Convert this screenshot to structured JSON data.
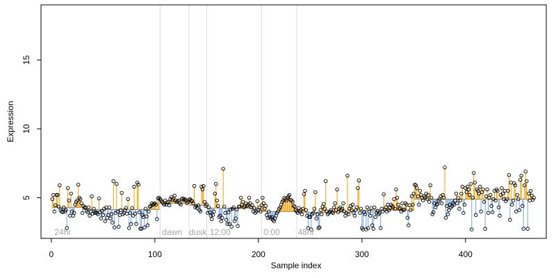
{
  "chart_data": {
    "type": "scatter",
    "xlabel": "Sample index",
    "ylabel": "Expression",
    "xlim": [
      -10,
      478
    ],
    "ylim": [
      2.05,
      19.0
    ],
    "x_ticks": [
      0,
      100,
      200,
      300,
      400
    ],
    "y_ticks": [
      5,
      10,
      15
    ],
    "baseline": [
      {
        "from": 1,
        "to": 30,
        "y": 4.3
      },
      {
        "from": 31,
        "to": 104,
        "y": 4.15
      },
      {
        "from": 105,
        "to": 133,
        "y": 4.6
      },
      {
        "from": 134,
        "to": 149,
        "y": 4.45
      },
      {
        "from": 150,
        "to": 202,
        "y": 4.25
      },
      {
        "from": 203,
        "to": 237,
        "y": 4.0
      },
      {
        "from": 238,
        "to": 290,
        "y": 3.95
      },
      {
        "from": 291,
        "to": 350,
        "y": 4.1
      },
      {
        "from": 351,
        "to": 466,
        "y": 4.9
      }
    ],
    "separators": [
      105,
      133,
      150,
      203,
      237
    ],
    "annotations": [
      {
        "x": 3,
        "text": "24hr"
      },
      {
        "x": 107,
        "text": "dawn"
      },
      {
        "x": 133,
        "text": "dusk"
      },
      {
        "x": 153,
        "text": "12:00"
      },
      {
        "x": 205,
        "text": "0:00"
      },
      {
        "x": 238,
        "text": "48hr"
      }
    ],
    "highlighted_values": [
      {
        "x": 59,
        "y": 6.2
      },
      {
        "x": 82,
        "y": 6.1
      },
      {
        "x": 158,
        "y": 7.1
      },
      {
        "x": 196,
        "y": 7.05
      },
      {
        "x": 285,
        "y": 6.6
      },
      {
        "x": 297,
        "y": 6.25
      },
      {
        "x": 378,
        "y": 7.2
      },
      {
        "x": 403,
        "y": 6.8
      },
      {
        "x": 443,
        "y": 6.65
      },
      {
        "x": 463,
        "y": 6.9
      }
    ],
    "series": [
      {
        "values": [
          4.9,
          5.2,
          4.0,
          4.45,
          5.2,
          5.2,
          4.35,
          5.9,
          4.1,
          4.0,
          3.95,
          4.3,
          4.0,
          4.1,
          2.8,
          5.7,
          4.8,
          3.7,
          5.3,
          4.0,
          3.7,
          3.9,
          4.5,
          4.7,
          4.8,
          5.95,
          5.0,
          4.9,
          4.6,
          3.9,
          4.4,
          4.3,
          4.3,
          4.05,
          3.95,
          4.3,
          3.7,
          4.0,
          5.1,
          3.85,
          4.2,
          3.9,
          3.95,
          3.9,
          3.8,
          4.95,
          3.95,
          3.5,
          4.05,
          3.75,
          4.2,
          3.3,
          4.3,
          3.55,
          3.75,
          4.3,
          3.5,
          3.8,
          3.2,
          6.2,
          2.85,
          3.9,
          6.0,
          4.0,
          2.9,
          3.75,
          4.1,
          5.35,
          3.8,
          3.9,
          4.1,
          4.25,
          3.85,
          4.9,
          2.8,
          3.9,
          3.1,
          4.25,
          3.7,
          5.8,
          3.85,
          3.1,
          6.1,
          5.95,
          3.95,
          2.75,
          2.75,
          3.75,
          3.6,
          2.85,
          4.2,
          3.65,
          3.0,
          4.0,
          4.35,
          4.4,
          4.6,
          4.5,
          4.55,
          4.6,
          4.5,
          3.45,
          4.95,
          5.0,
          4.9,
          4.8,
          4.7,
          4.6,
          4.5,
          4.8,
          4.5,
          4.65,
          4.7,
          4.45,
          4.9,
          5.05,
          4.85,
          4.95,
          5.15,
          4.8,
          4.7,
          4.75,
          4.8,
          4.6,
          4.5,
          4.9,
          4.95,
          4.85,
          4.9,
          4.8,
          4.6,
          4.7,
          4.85,
          4.9,
          4.8,
          4.75,
          4.6,
          5.85,
          4.3,
          4.4,
          4.25,
          4.45,
          4.1,
          4.0,
          5.8,
          5.6,
          5.85,
          4.7,
          4.4,
          4.5,
          3.9,
          4.3,
          3.95,
          3.7,
          3.45,
          3.75,
          4.0,
          5.3,
          6.0,
          4.8,
          4.4,
          3.6,
          3.7,
          3.3,
          3.55,
          7.1,
          4.35,
          3.9,
          3.4,
          3.1,
          3.95,
          3.1,
          4.15,
          2.9,
          4.2,
          4.3,
          3.3,
          3.5,
          4.15,
          2.95,
          4.35,
          4.35,
          5.0,
          4.5,
          4.7,
          4.3,
          4.4,
          4.6,
          4.4,
          4.5,
          5.0,
          4.6,
          4.3,
          4.45,
          4.0,
          4.25,
          3.9,
          4.0,
          4.75,
          4.1,
          4.3,
          4.0,
          4.45,
          5.0,
          4.6,
          4.2,
          4.4,
          3.75,
          3.55,
          4.0,
          3.6,
          3.5,
          3.6,
          3.4,
          3.3,
          3.5,
          3.7,
          3.9,
          4.0,
          4.2,
          4.3,
          4.5,
          4.7,
          4.8,
          5.0,
          4.9,
          4.8,
          5.0,
          5.1,
          5.2,
          4.85,
          4.8,
          4.7,
          4.4,
          4.35,
          4.1,
          4.0,
          3.9,
          4.25,
          4.0,
          4.1,
          3.8,
          4.2,
          5.25,
          5.5,
          4.1,
          3.7,
          2.8,
          3.6,
          3.6,
          2.7,
          3.8,
          3.9,
          4.2,
          5.4,
          3.5,
          3.8,
          2.8,
          2.85,
          4.1,
          3.8,
          4.35,
          4.55,
          4.2,
          6.2,
          4.0,
          3.8,
          3.9,
          4.0,
          4.1,
          3.95,
          3.9,
          4.3,
          4.6,
          4.1,
          5.6,
          3.95,
          4.2,
          4.3,
          4.1,
          4.2,
          4.6,
          4.0,
          3.7,
          3.9,
          6.6,
          3.8,
          4.2,
          4.4,
          4.1,
          4.5,
          3.9,
          3.7,
          4.1,
          4.3,
          5.7,
          6.25,
          3.9,
          4.2,
          2.8,
          2.7,
          3.95,
          3.8,
          2.7,
          4.3,
          2.8,
          4.0,
          3.7,
          4.25,
          3.0,
          2.75,
          4.3,
          3.6,
          3.9,
          4.05,
          3.8,
          3.9,
          2.8,
          4.2,
          4.0,
          5.25,
          4.15,
          4.3,
          4.0,
          4.5,
          4.1,
          4.25,
          4.5,
          4.4,
          4.3,
          4.9,
          4.2,
          5.6,
          5.0,
          4.5,
          4.2,
          4.25,
          4.0,
          4.6,
          4.1,
          4.15,
          4.6,
          4.5,
          3.55,
          3.0,
          4.45,
          4.1,
          5.1,
          4.5,
          5.3,
          5.95,
          5.9,
          5.7,
          5.1,
          4.5,
          5.5,
          5.2,
          5.0,
          4.8,
          5.1,
          5.0,
          5.3,
          4.9,
          5.2,
          4.7,
          5.9,
          5.0,
          3.8,
          3.95,
          4.6,
          4.3,
          4.5,
          4.55,
          4.8,
          4.9,
          5.1,
          4.6,
          5.2,
          5.0,
          7.2,
          3.55,
          4.4,
          3.8,
          4.1,
          4.5,
          4.3,
          4.4,
          4.6,
          4.5,
          4.8,
          5.3,
          4.6,
          5.0,
          4.2,
          4.8,
          5.3,
          5.8,
          3.9,
          4.5,
          5.7,
          5.4,
          5.8,
          5.6,
          5.2,
          6.0,
          2.7,
          5.0,
          6.8,
          6.1,
          3.75,
          5.6,
          5.5,
          5.3,
          5.8,
          4.0,
          5.4,
          5.6,
          4.7,
          2.75,
          5.1,
          5.6,
          3.9,
          5.0,
          5.2,
          4.4,
          3.95,
          4.9,
          5.5,
          4.8,
          5.6,
          5.5,
          4.3,
          3.7,
          5.2,
          5.7,
          5.3,
          4.9,
          5.5,
          4.75,
          4.9,
          5.5,
          6.65,
          3.4,
          6.1,
          4.5,
          4.8,
          6.05,
          5.9,
          4.0,
          5.2,
          4.9,
          4.1,
          6.3,
          6.6,
          4.4,
          2.75,
          5.9,
          6.9,
          6.2,
          2.75,
          5.3,
          4.8,
          5.5,
          5.15,
          4.85,
          5.0
        ]
      }
    ]
  }
}
